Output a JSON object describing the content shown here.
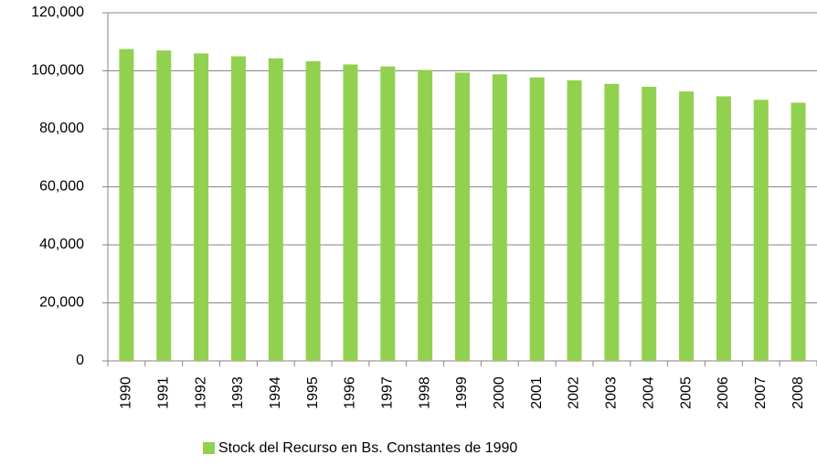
{
  "chart_data": {
    "type": "bar",
    "categories": [
      "1990",
      "1991",
      "1992",
      "1993",
      "1994",
      "1995",
      "1996",
      "1997",
      "1998",
      "1999",
      "2000",
      "2001",
      "2002",
      "2003",
      "2004",
      "2005",
      "2006",
      "2007",
      "2008"
    ],
    "series": [
      {
        "name": "Stock del Recurso en Bs. Constantes de 1990",
        "color": "#92d050",
        "values": [
          107500,
          107000,
          106000,
          105000,
          104300,
          103300,
          102200,
          101500,
          100300,
          99400,
          98800,
          97700,
          96700,
          95500,
          94500,
          92900,
          91200,
          90000,
          89000
        ]
      }
    ],
    "ylim": [
      0,
      120000
    ],
    "yticks": [
      0,
      {
        "value": 20000,
        "label": "20,000"
      },
      {
        "value": 40000,
        "label": "40,000"
      },
      {
        "value": 60000,
        "label": "60,000"
      },
      {
        "value": 80000,
        "label": "80,000"
      },
      {
        "value": 100000,
        "label": "100,000"
      },
      {
        "value": 120000,
        "label": "120,000"
      }
    ],
    "grid": true,
    "legend": "bottom"
  }
}
